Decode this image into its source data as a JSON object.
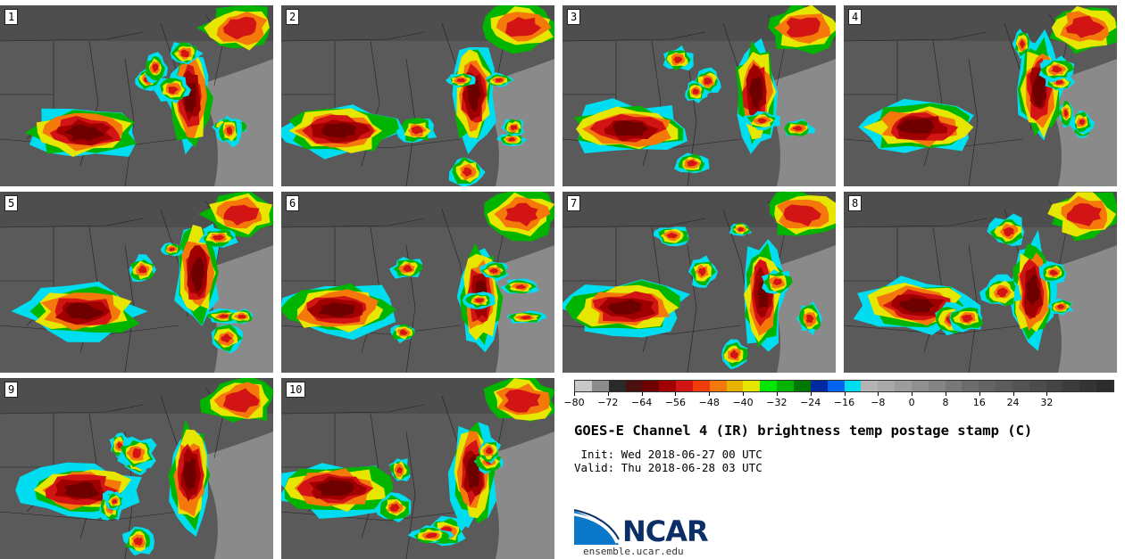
{
  "panels": [
    {
      "label": "1"
    },
    {
      "label": "2"
    },
    {
      "label": "3"
    },
    {
      "label": "4"
    },
    {
      "label": "5"
    },
    {
      "label": "6"
    },
    {
      "label": "7"
    },
    {
      "label": "8"
    },
    {
      "label": "9"
    },
    {
      "label": "10"
    }
  ],
  "colorbar": {
    "colors": [
      "#c8c8c8",
      "#8c8c8c",
      "#2a2a2a",
      "#4a0f0f",
      "#6e0000",
      "#a00000",
      "#d21414",
      "#f03c0a",
      "#f5780a",
      "#e6b400",
      "#e6e600",
      "#00e600",
      "#00b400",
      "#007800",
      "#0028a0",
      "#0064f0",
      "#00dcf0",
      "#b4b4b4",
      "#a8a8a8",
      "#9c9c9c",
      "#909090",
      "#848484",
      "#787878",
      "#6c6c6c",
      "#646464",
      "#5c5c5c",
      "#545454",
      "#4c4c4c",
      "#444444",
      "#3c3c3c",
      "#343434",
      "#2c2c2c"
    ],
    "ticks": [
      "−80",
      "−72",
      "−64",
      "−56",
      "−48",
      "−40",
      "−32",
      "−24",
      "−16",
      "−8",
      "0",
      "8",
      "16",
      "24",
      "32"
    ]
  },
  "title": "GOES-E Channel 4 (IR) brightness temp postage stamp (C)",
  "init_line": " Init: Wed 2018-06-27 00 UTC",
  "valid_line": "Valid: Thu 2018-06-28 03 UTC",
  "logo": {
    "text": "NCAR"
  },
  "site": "ensemble.ucar.edu"
}
